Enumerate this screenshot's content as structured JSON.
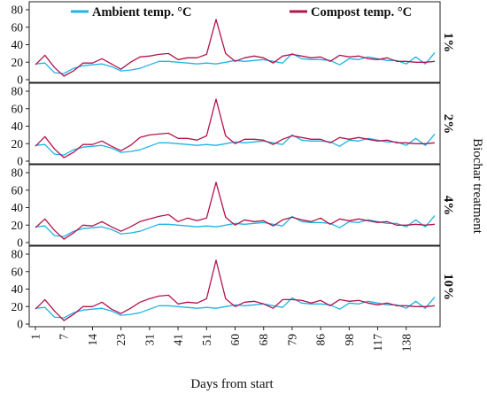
{
  "chart_data": {
    "type": "line",
    "xlabel": "Days from start",
    "facet_label": "Biochar treatment",
    "legend": {
      "placement": "top",
      "entries": [
        "Ambient temp. °C",
        "Compost temp. °C"
      ]
    },
    "x_tick_labels": [
      "1",
      "7",
      "14",
      "23",
      "31",
      "41",
      "51",
      "60",
      "68",
      "79",
      "86",
      "98",
      "117",
      "138"
    ],
    "x_tick_index": [
      0,
      3,
      6,
      9,
      12,
      15,
      18,
      21,
      24,
      27,
      30,
      33,
      36,
      39
    ],
    "ylim": [
      0,
      80
    ],
    "y_ticks": [
      "0",
      "20",
      "40",
      "60",
      "80"
    ],
    "colors": {
      "ambient": "#1eb4e6",
      "compost": "#b4144b"
    },
    "ambient_values": [
      18,
      19,
      8,
      7,
      13,
      16,
      17,
      18,
      15,
      10,
      11,
      13,
      17,
      21,
      21,
      20,
      19,
      18,
      19,
      18,
      20,
      22,
      21,
      22,
      23,
      21,
      19,
      30,
      24,
      23,
      23,
      22,
      17,
      24,
      23,
      26,
      24,
      22,
      22,
      18,
      26,
      18,
      31
    ],
    "panels": [
      {
        "label": "1%",
        "compost": [
          17,
          28,
          14,
          4,
          10,
          19,
          19,
          24,
          18,
          12,
          20,
          26,
          27,
          29,
          30,
          23,
          25,
          25,
          29,
          69,
          30,
          21,
          25,
          27,
          25,
          19,
          27,
          29,
          27,
          25,
          26,
          21,
          28,
          26,
          27,
          24,
          23,
          25,
          21,
          21,
          20,
          20,
          21
        ]
      },
      {
        "label": "2%",
        "compost": [
          17,
          28,
          14,
          4,
          10,
          19,
          19,
          23,
          17,
          12,
          18,
          27,
          30,
          31,
          32,
          26,
          26,
          24,
          29,
          71,
          29,
          20,
          25,
          25,
          24,
          19,
          25,
          29,
          27,
          25,
          25,
          21,
          27,
          25,
          27,
          25,
          23,
          24,
          21,
          21,
          20,
          20,
          21
        ]
      },
      {
        "label": "4%",
        "compost": [
          17,
          27,
          14,
          4,
          11,
          20,
          19,
          24,
          18,
          13,
          18,
          24,
          27,
          30,
          32,
          24,
          28,
          25,
          28,
          69,
          29,
          20,
          26,
          24,
          25,
          19,
          26,
          29,
          26,
          24,
          28,
          21,
          27,
          25,
          27,
          25,
          23,
          24,
          20,
          20,
          21,
          20,
          21
        ]
      },
      {
        "label": "10%",
        "compost": [
          17,
          28,
          15,
          4,
          11,
          20,
          20,
          25,
          17,
          12,
          18,
          25,
          29,
          32,
          33,
          23,
          25,
          24,
          29,
          73,
          29,
          20,
          25,
          26,
          23,
          18,
          28,
          28,
          27,
          24,
          27,
          21,
          28,
          26,
          27,
          24,
          22,
          24,
          21,
          21,
          20,
          20,
          21
        ]
      }
    ]
  }
}
